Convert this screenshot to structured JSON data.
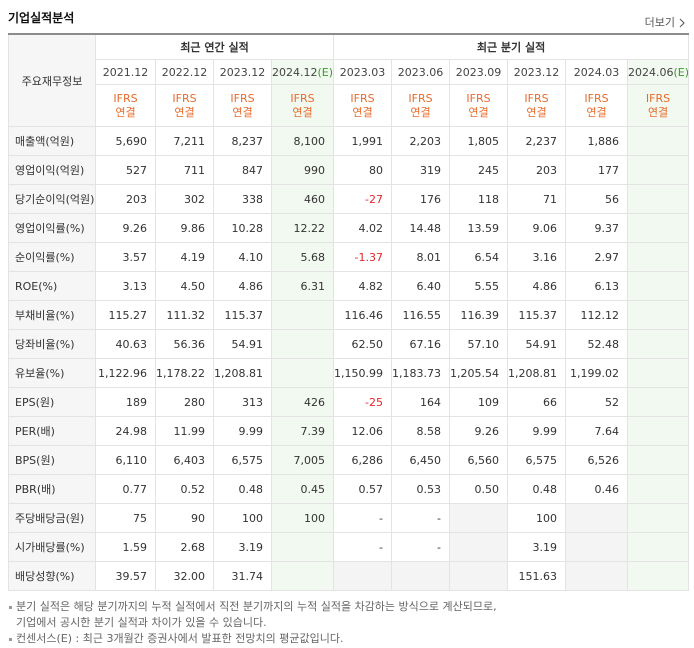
{
  "header": {
    "title": "기업실적분석",
    "more": "더보기"
  },
  "table": {
    "corner": "주요재무정보",
    "groups": [
      "최근 연간 실적",
      "최근 분기 실적"
    ],
    "columns": [
      {
        "period": "2021.12",
        "basis": [
          "IFRS",
          "연결"
        ]
      },
      {
        "period": "2022.12",
        "basis": [
          "IFRS",
          "연결"
        ]
      },
      {
        "period": "2023.12",
        "basis": [
          "IFRS",
          "연결"
        ]
      },
      {
        "period": "2024.12",
        "suffix": "(E)",
        "basis": [
          "IFRS",
          "연결"
        ]
      },
      {
        "period": "2023.03",
        "basis": [
          "IFRS",
          "연결"
        ]
      },
      {
        "period": "2023.06",
        "basis": [
          "IFRS",
          "연결"
        ]
      },
      {
        "period": "2023.09",
        "basis": [
          "IFRS",
          "연결"
        ]
      },
      {
        "period": "2023.12",
        "basis": [
          "IFRS",
          "연결"
        ]
      },
      {
        "period": "2024.03",
        "basis": [
          "IFRS",
          "연결"
        ]
      },
      {
        "period": "2024.06",
        "suffix": "(E)",
        "basis": [
          "IFRS",
          "연결"
        ]
      }
    ],
    "sections": [
      [
        {
          "label": "매출액(억원)",
          "cells": [
            "5,690",
            "7,211",
            "8,237",
            "8,100",
            "1,991",
            "2,203",
            "1,805",
            "2,237",
            "1,886",
            null
          ]
        },
        {
          "label": "영업이익(억원)",
          "cells": [
            "527",
            "711",
            "847",
            "990",
            "80",
            "319",
            "245",
            "203",
            "177",
            null
          ]
        },
        {
          "label": "당기순이익(억원)",
          "cells": [
            "203",
            "302",
            "338",
            "460",
            "-27",
            "176",
            "118",
            "71",
            "56",
            null
          ]
        }
      ],
      [
        {
          "label": "영업이익률(%)",
          "cells": [
            "9.26",
            "9.86",
            "10.28",
            "12.22",
            "4.02",
            "14.48",
            "13.59",
            "9.06",
            "9.37",
            null
          ]
        },
        {
          "label": "순이익률(%)",
          "cells": [
            "3.57",
            "4.19",
            "4.10",
            "5.68",
            "-1.37",
            "8.01",
            "6.54",
            "3.16",
            "2.97",
            null
          ]
        },
        {
          "label": "ROE(%)",
          "cells": [
            "3.13",
            "4.50",
            "4.86",
            "6.31",
            "4.82",
            "6.40",
            "5.55",
            "4.86",
            "6.13",
            null
          ]
        }
      ],
      [
        {
          "label": "부채비율(%)",
          "cells": [
            "115.27",
            "111.32",
            "115.37",
            null,
            "116.46",
            "116.55",
            "116.39",
            "115.37",
            "112.12",
            null
          ]
        },
        {
          "label": "당좌비율(%)",
          "cells": [
            "40.63",
            "56.36",
            "54.91",
            null,
            "62.50",
            "67.16",
            "57.10",
            "54.91",
            "52.48",
            null
          ]
        },
        {
          "label": "유보율(%)",
          "cells": [
            "1,122.96",
            "1,178.22",
            "1,208.81",
            null,
            "1,150.99",
            "1,183.73",
            "1,205.54",
            "1,208.81",
            "1,199.02",
            null
          ]
        }
      ],
      [
        {
          "label": "EPS(원)",
          "cells": [
            "189",
            "280",
            "313",
            "426",
            "-25",
            "164",
            "109",
            "66",
            "52",
            null
          ]
        },
        {
          "label": "PER(배)",
          "cells": [
            "24.98",
            "11.99",
            "9.99",
            "7.39",
            "12.06",
            "8.58",
            "9.26",
            "9.99",
            "7.64",
            null
          ]
        },
        {
          "label": "BPS(원)",
          "cells": [
            "6,110",
            "6,403",
            "6,575",
            "7,005",
            "6,286",
            "6,450",
            "6,560",
            "6,575",
            "6,526",
            null
          ]
        },
        {
          "label": "PBR(배)",
          "cells": [
            "0.77",
            "0.52",
            "0.48",
            "0.45",
            "0.57",
            "0.53",
            "0.50",
            "0.48",
            "0.46",
            null
          ]
        }
      ],
      [
        {
          "label": "주당배당금(원)",
          "cells": [
            "75",
            "90",
            "100",
            "100",
            "-",
            "-",
            null,
            "100",
            null,
            null
          ]
        },
        {
          "label": "시가배당률(%)",
          "cells": [
            "1.59",
            "2.68",
            "3.19",
            null,
            "-",
            "-",
            null,
            "3.19",
            null,
            null
          ]
        },
        {
          "label": "배당성향(%)",
          "cells": [
            "39.57",
            "32.00",
            "31.74",
            null,
            null,
            null,
            null,
            "151.63",
            null,
            null
          ]
        }
      ]
    ]
  },
  "notes": [
    [
      "분기 실적은 해당 분기까지의 누적 실적에서 직전 분기까지의 누적 실적을 차감하는 방식으로 계산되므로,",
      "기업에서 공시한 분기 실적과 차이가 있을 수 있습니다."
    ],
    [
      "컨센서스(E) : 최근 3개월간 증권사에서 발표한 전망치의 평균값입니다."
    ]
  ]
}
